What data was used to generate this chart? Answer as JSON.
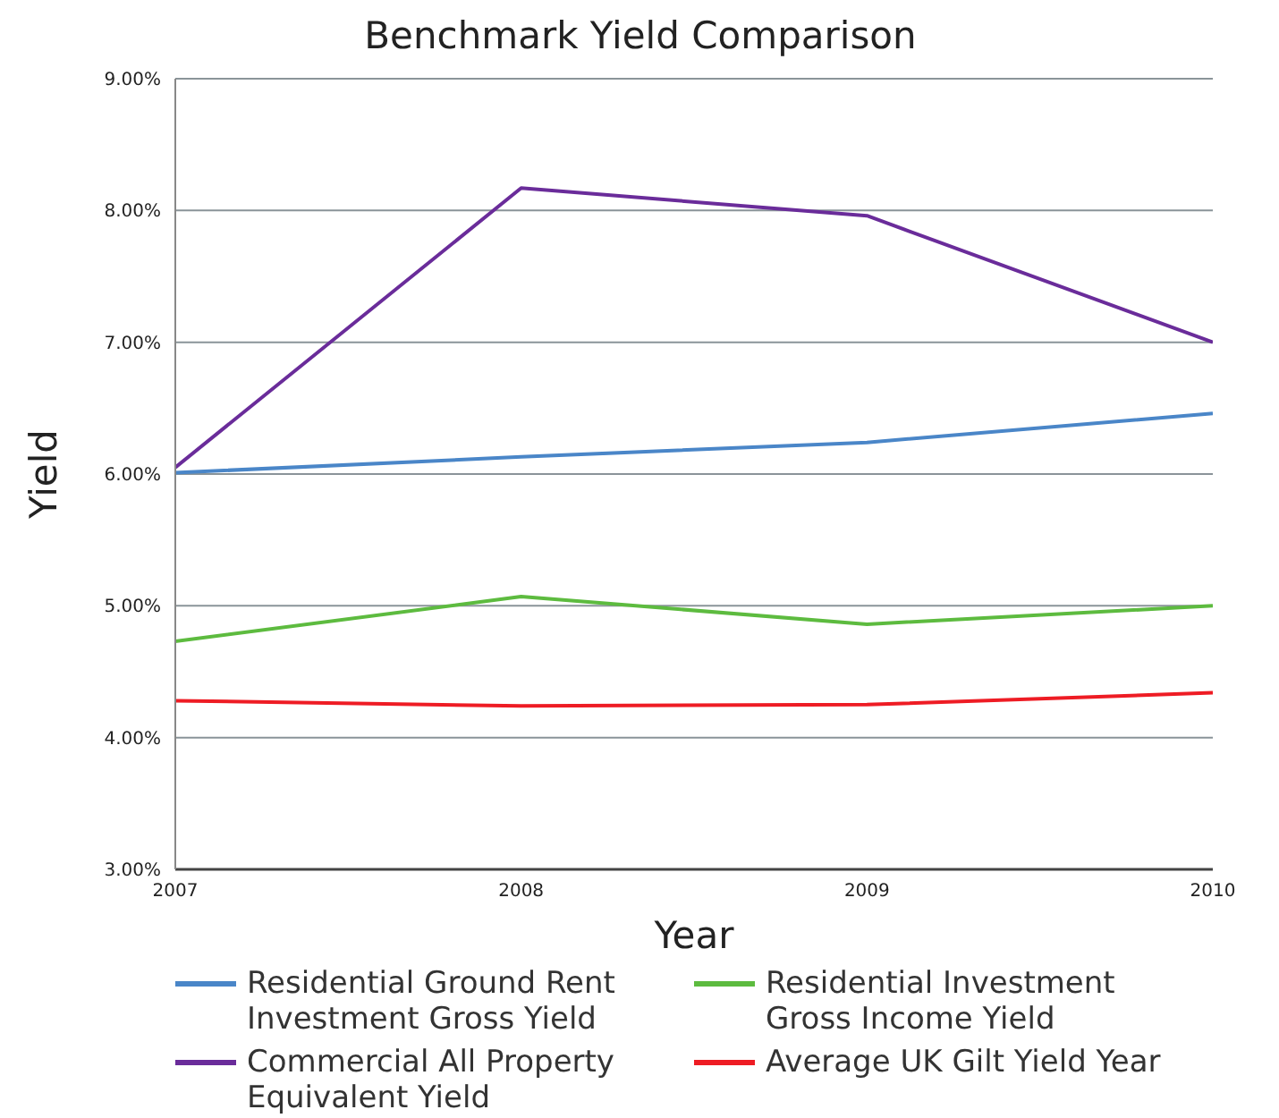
{
  "chart_data": {
    "type": "line",
    "title": "Benchmark Yield Comparison",
    "xlabel": "Year",
    "ylabel": "Yield",
    "x": [
      2007,
      2008,
      2009,
      2010
    ],
    "xlim": [
      2007,
      2010
    ],
    "xticks": [
      2007,
      2008,
      2009,
      2010
    ],
    "ylim": [
      3,
      9
    ],
    "yticks": [
      {
        "value": 3,
        "label": "3.00%"
      },
      {
        "value": 4,
        "label": "4.00%"
      },
      {
        "value": 5,
        "label": "5.00%"
      },
      {
        "value": 6,
        "label": "6.00%"
      },
      {
        "value": 7,
        "label": "7.00%"
      },
      {
        "value": 8,
        "label": "8.00%"
      },
      {
        "value": 9,
        "label": "9.00%"
      }
    ],
    "grid": "y",
    "legend": "bottom",
    "marker": "none",
    "line_style": "solid",
    "series": [
      {
        "name": "Residential Ground Rent Investment Gross Yield",
        "color": "#4a86c8",
        "values": [
          6.01,
          6.13,
          6.24,
          6.46
        ]
      },
      {
        "name": "Residential Investment Gross Income Yield",
        "color": "#5dbb3f",
        "values": [
          4.73,
          5.07,
          4.86,
          5.0
        ]
      },
      {
        "name": "Commercial All Property Equivalent Yield",
        "color": "#6a2c9a",
        "values": [
          6.05,
          8.17,
          7.96,
          7.0
        ]
      },
      {
        "name": "Average UK Gilt Yield Year",
        "color": "#ee1c24",
        "values": [
          4.28,
          4.24,
          4.25,
          4.34
        ]
      }
    ]
  }
}
